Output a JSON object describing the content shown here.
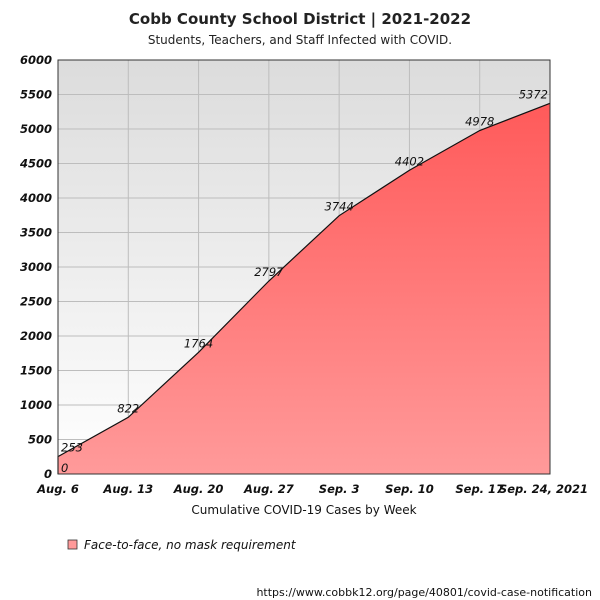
{
  "chart_data": {
    "type": "area",
    "title": "Cobb County School District | 2021-2022",
    "subtitle": "Students, Teachers, and Staff Infected with COVID.",
    "xlabel": "Cumulative COVID-19 Cases by Week",
    "ylabel": "",
    "categories": [
      "Aug. 6",
      "Aug. 13",
      "Aug. 20",
      "Aug. 27",
      "Sep. 3",
      "Sep. 10",
      "Sep. 17",
      "Sep. 24, 2021"
    ],
    "y_ticks": [
      "0",
      "500",
      "1000",
      "1500",
      "2000",
      "2500",
      "3000",
      "3500",
      "4000",
      "4500",
      "5000",
      "5500",
      "6000"
    ],
    "ylim": [
      0,
      6000
    ],
    "grid": true,
    "legend_position": "bottom-left",
    "series": [
      {
        "name": "Face-to-face, no mask requirement",
        "x": [
          0,
          0,
          1,
          2,
          3,
          4,
          5,
          6,
          7
        ],
        "values": [
          0,
          253,
          822,
          1764,
          2797,
          3744,
          4402,
          4978,
          5372
        ],
        "labels": [
          "0",
          "253",
          "822",
          "1764",
          "2797",
          "3744",
          "4402",
          "4978",
          "5372"
        ],
        "color_top": "#ff5a5a",
        "color_bottom": "#ff9a9a"
      }
    ],
    "source": "https://www.cobbk12.org/page/40801/covid-case-notification"
  }
}
